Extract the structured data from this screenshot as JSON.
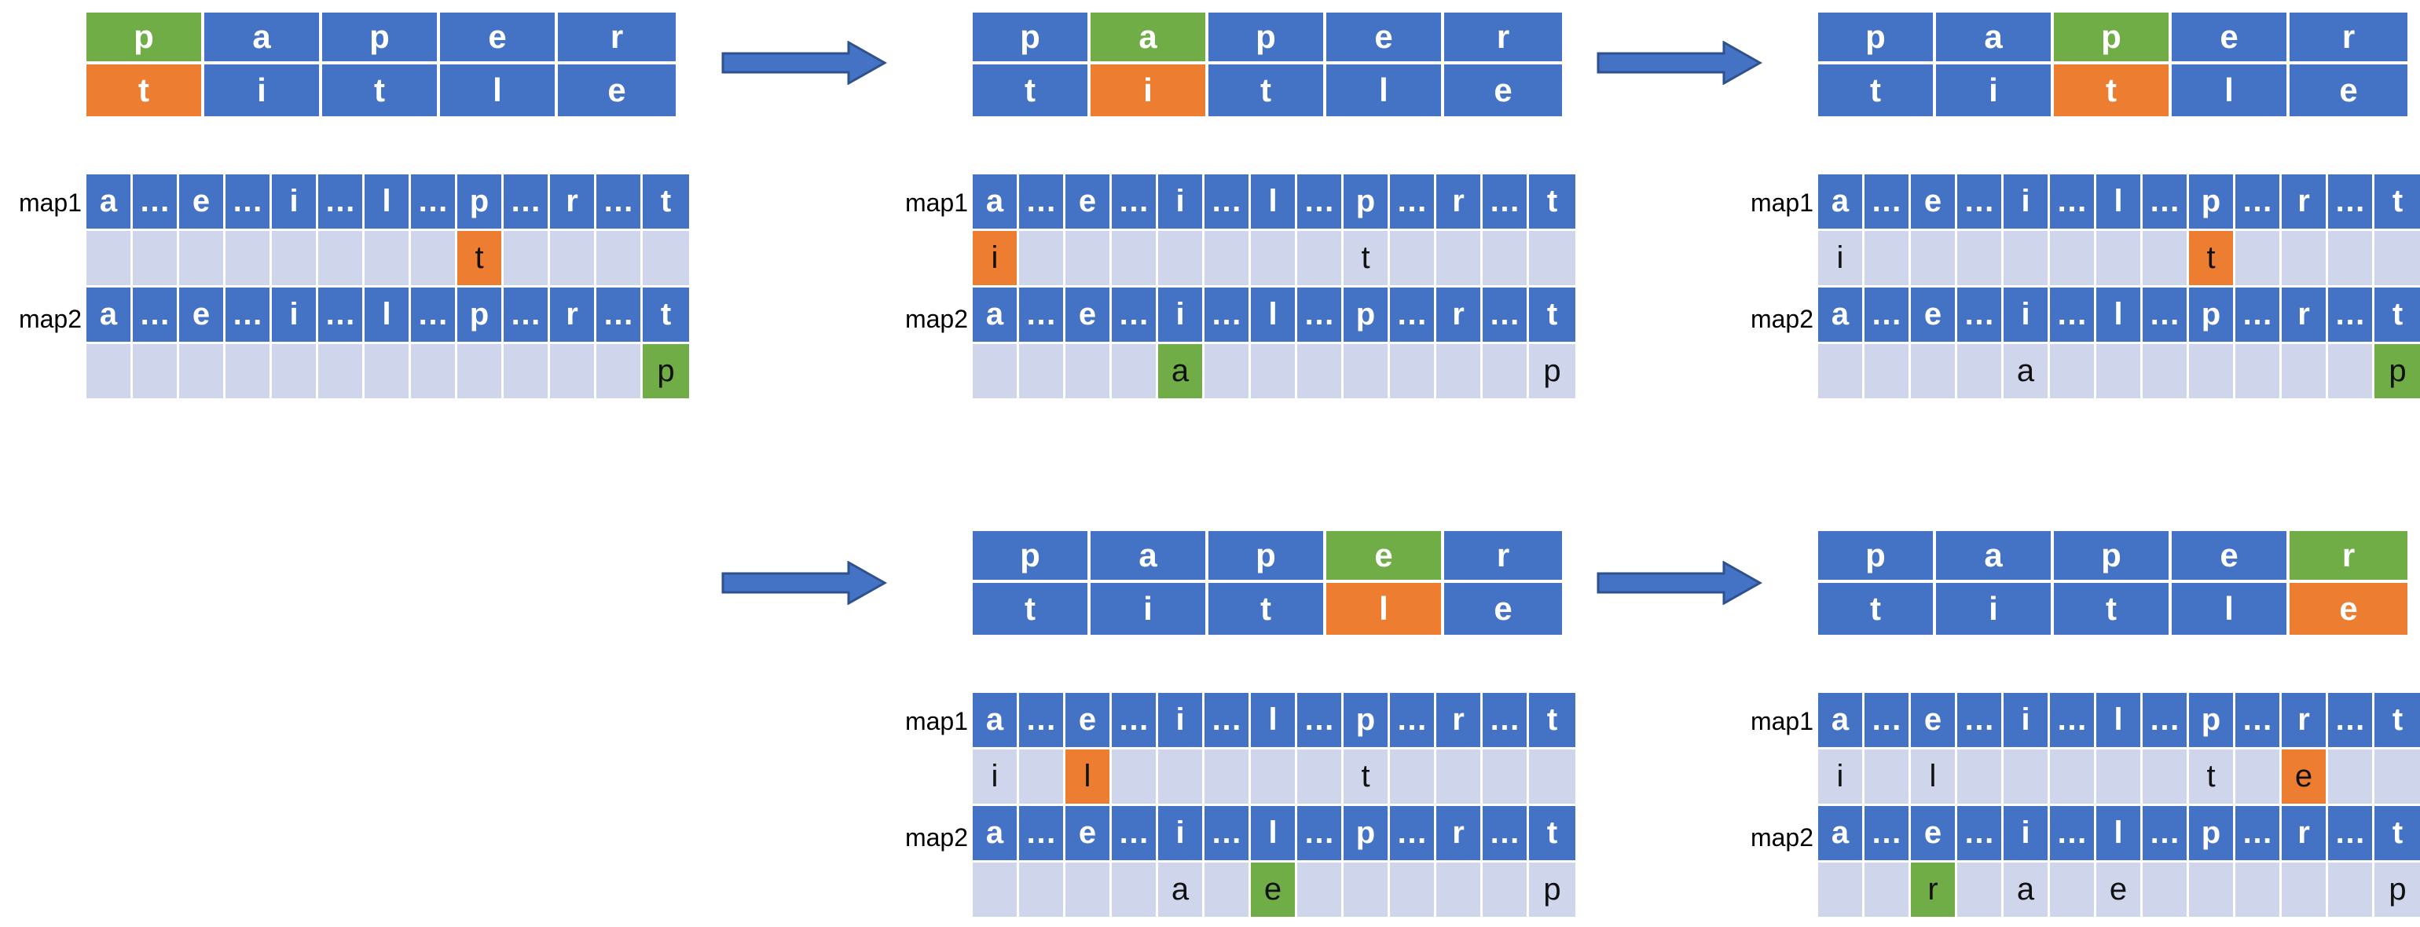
{
  "colors": {
    "cell": "#4472c4",
    "value_bg": "#cfd5ea",
    "match_source": "#70ad47",
    "match_target": "#ed7d31",
    "arrow": "#4472c4"
  },
  "labels": {
    "map1": "map1",
    "map2": "map2"
  },
  "keys": [
    "a",
    "…",
    "e",
    "…",
    "i",
    "…",
    "l",
    "…",
    "p",
    "…",
    "r",
    "…",
    "t"
  ],
  "word1": [
    "p",
    "a",
    "p",
    "e",
    "r"
  ],
  "word2": [
    "t",
    "i",
    "t",
    "l",
    "e"
  ],
  "steps": [
    {
      "step": 1,
      "active_index": 0,
      "map1_values": [
        "",
        "",
        "",
        "",
        "",
        "",
        "",
        "",
        "t",
        "",
        "",
        "",
        ""
      ],
      "map1_highlight": 8,
      "map2_values": [
        "",
        "",
        "",
        "",
        "",
        "",
        "",
        "",
        "",
        "",
        "",
        "",
        "p"
      ],
      "map2_highlight": 12
    },
    {
      "step": 2,
      "active_index": 1,
      "map1_values": [
        "i",
        "",
        "",
        "",
        "",
        "",
        "",
        "",
        "t",
        "",
        "",
        "",
        ""
      ],
      "map1_highlight": 0,
      "map2_values": [
        "",
        "",
        "",
        "",
        "a",
        "",
        "",
        "",
        "",
        "",
        "",
        "",
        "p"
      ],
      "map2_highlight": 4
    },
    {
      "step": 3,
      "active_index": 2,
      "map1_values": [
        "i",
        "",
        "",
        "",
        "",
        "",
        "",
        "",
        "t",
        "",
        "",
        "",
        ""
      ],
      "map1_highlight": 8,
      "map2_values": [
        "",
        "",
        "",
        "",
        "a",
        "",
        "",
        "",
        "",
        "",
        "",
        "",
        "p"
      ],
      "map2_highlight": 12
    },
    {
      "step": 4,
      "active_index": 3,
      "map1_values": [
        "i",
        "",
        "l",
        "",
        "",
        "",
        "",
        "",
        "t",
        "",
        "",
        "",
        ""
      ],
      "map1_highlight": 2,
      "map2_values": [
        "",
        "",
        "",
        "",
        "a",
        "",
        "e",
        "",
        "",
        "",
        "",
        "",
        "p"
      ],
      "map2_highlight": 6
    },
    {
      "step": 5,
      "active_index": 4,
      "map1_values": [
        "i",
        "",
        "l",
        "",
        "",
        "",
        "",
        "",
        "t",
        "",
        "e",
        "",
        ""
      ],
      "map1_highlight": 10,
      "map2_values": [
        "",
        "",
        "r",
        "",
        "a",
        "",
        "e",
        "",
        "",
        "",
        "",
        "",
        "p"
      ],
      "map2_highlight": 2
    }
  ]
}
